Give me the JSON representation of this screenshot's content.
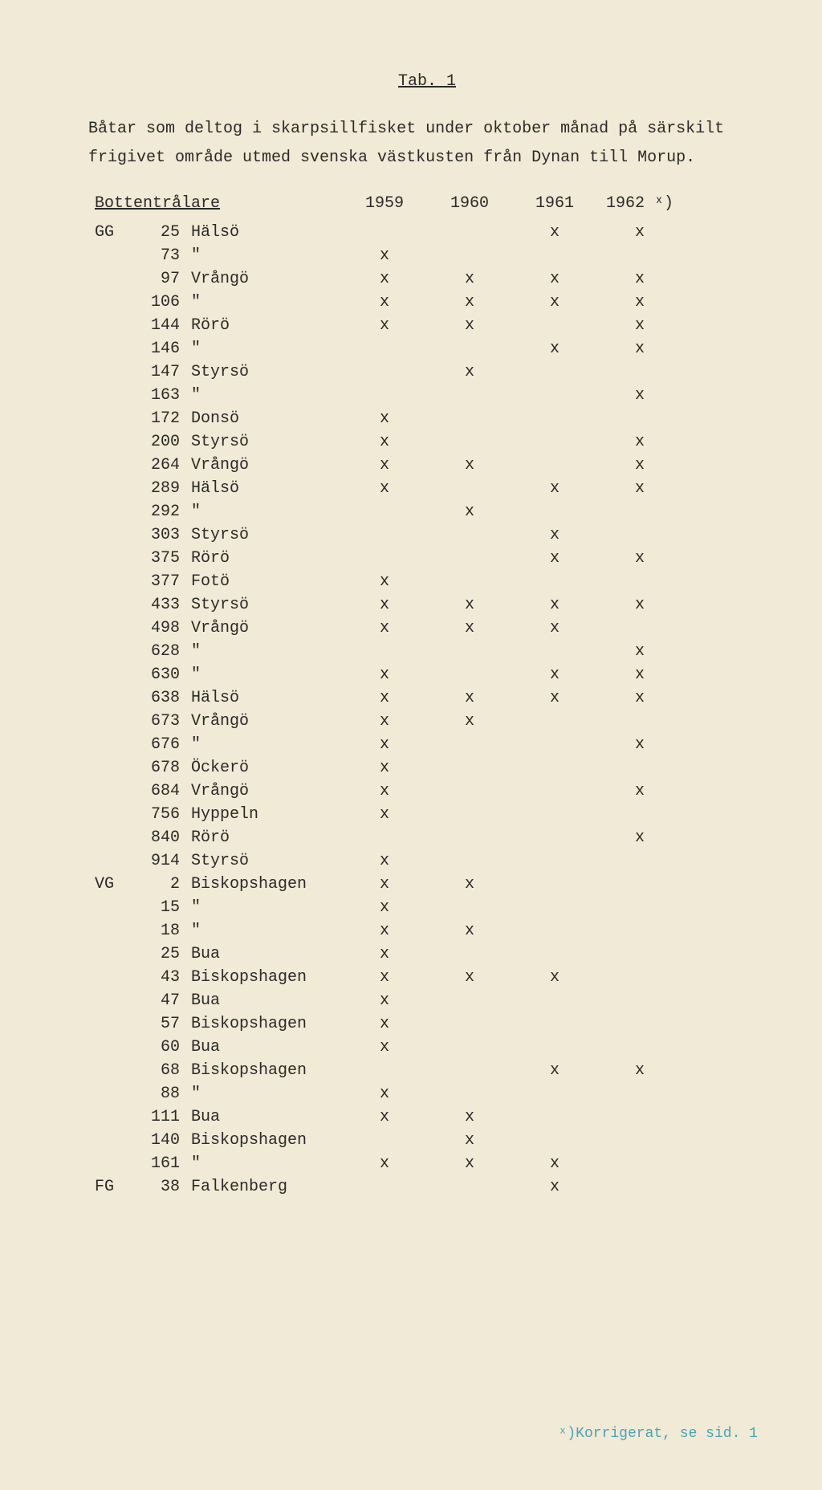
{
  "title": "Tab. 1",
  "intro": "Båtar som deltog i skarpsillfisket under oktober månad på särskilt frigivet område utmed svenska västkusten från Dynan till Morup.",
  "header": {
    "label": "Bottentrålare",
    "years": [
      "1959",
      "1960",
      "1961",
      "1962 ˣ)"
    ]
  },
  "footnote": "ˣ)Korrigerat, se sid. 1",
  "rows": [
    {
      "prefix": "GG",
      "num": "25",
      "name": "Hälsö",
      "y": [
        "",
        "",
        "x",
        "x"
      ]
    },
    {
      "prefix": "",
      "num": "73",
      "name": "\"",
      "y": [
        "x",
        "",
        "",
        ""
      ]
    },
    {
      "prefix": "",
      "num": "97",
      "name": "Vrångö",
      "y": [
        "x",
        "x",
        "x",
        "x"
      ]
    },
    {
      "prefix": "",
      "num": "106",
      "name": "\"",
      "y": [
        "x",
        "x",
        "x",
        "x"
      ]
    },
    {
      "prefix": "",
      "num": "144",
      "name": "Rörö",
      "y": [
        "x",
        "x",
        "",
        "x"
      ]
    },
    {
      "prefix": "",
      "num": "146",
      "name": "\"",
      "y": [
        "",
        "",
        "x",
        "x"
      ]
    },
    {
      "prefix": "",
      "num": "147",
      "name": "Styrsö",
      "y": [
        "",
        "x",
        "",
        ""
      ]
    },
    {
      "prefix": "",
      "num": "163",
      "name": "\"",
      "y": [
        "",
        "",
        "",
        "x"
      ]
    },
    {
      "prefix": "",
      "num": "172",
      "name": "Donsö",
      "y": [
        "x",
        "",
        "",
        ""
      ]
    },
    {
      "prefix": "",
      "num": "200",
      "name": "Styrsö",
      "y": [
        "x",
        "",
        "",
        "x"
      ]
    },
    {
      "prefix": "",
      "num": "264",
      "name": "Vrångö",
      "y": [
        "x",
        "x",
        "",
        "x"
      ]
    },
    {
      "prefix": "",
      "num": "289",
      "name": "Hälsö",
      "y": [
        "x",
        "",
        "x",
        "x"
      ]
    },
    {
      "prefix": "",
      "num": "292",
      "name": "\"",
      "y": [
        "",
        "x",
        "",
        ""
      ]
    },
    {
      "prefix": "",
      "num": "303",
      "name": "Styrsö",
      "y": [
        "",
        "",
        "x",
        ""
      ]
    },
    {
      "prefix": "",
      "num": "375",
      "name": "Rörö",
      "y": [
        "",
        "",
        "x",
        "x"
      ]
    },
    {
      "prefix": "",
      "num": "377",
      "name": "Fotö",
      "y": [
        "x",
        "",
        "",
        ""
      ]
    },
    {
      "prefix": "",
      "num": "433",
      "name": "Styrsö",
      "y": [
        "x",
        "x",
        "x",
        "x"
      ]
    },
    {
      "prefix": "",
      "num": "498",
      "name": "Vrångö",
      "y": [
        "x",
        "x",
        "x",
        ""
      ]
    },
    {
      "prefix": "",
      "num": "628",
      "name": "\"",
      "y": [
        "",
        "",
        "",
        "x"
      ]
    },
    {
      "prefix": "",
      "num": "630",
      "name": "\"",
      "y": [
        "x",
        "",
        "x",
        "x"
      ]
    },
    {
      "prefix": "",
      "num": "638",
      "name": "Hälsö",
      "y": [
        "x",
        "x",
        "x",
        "x"
      ]
    },
    {
      "prefix": "",
      "num": "673",
      "name": "Vrångö",
      "y": [
        "x",
        "x",
        "",
        ""
      ]
    },
    {
      "prefix": "",
      "num": "676",
      "name": "\"",
      "y": [
        "x",
        "",
        "",
        "x"
      ]
    },
    {
      "prefix": "",
      "num": "678",
      "name": "Öckerö",
      "y": [
        "x",
        "",
        "",
        ""
      ]
    },
    {
      "prefix": "",
      "num": "684",
      "name": "Vrångö",
      "y": [
        "x",
        "",
        "",
        "x"
      ]
    },
    {
      "prefix": "",
      "num": "756",
      "name": "Hyppeln",
      "y": [
        "x",
        "",
        "",
        ""
      ]
    },
    {
      "prefix": "",
      "num": "840",
      "name": "Rörö",
      "y": [
        "",
        "",
        "",
        "x"
      ]
    },
    {
      "prefix": "",
      "num": "914",
      "name": "Styrsö",
      "y": [
        "x",
        "",
        "",
        ""
      ]
    },
    {
      "prefix": "VG",
      "num": "2",
      "name": "Biskopshagen",
      "y": [
        "x",
        "x",
        "",
        ""
      ]
    },
    {
      "prefix": "",
      "num": "15",
      "name": "\"",
      "y": [
        "x",
        "",
        "",
        ""
      ]
    },
    {
      "prefix": "",
      "num": "18",
      "name": "\"",
      "y": [
        "x",
        "x",
        "",
        ""
      ]
    },
    {
      "prefix": "",
      "num": "25",
      "name": "Bua",
      "y": [
        "x",
        "",
        "",
        ""
      ]
    },
    {
      "prefix": "",
      "num": "43",
      "name": "Biskopshagen",
      "y": [
        "x",
        "x",
        "x",
        ""
      ]
    },
    {
      "prefix": "",
      "num": "47",
      "name": "Bua",
      "y": [
        "x",
        "",
        "",
        ""
      ]
    },
    {
      "prefix": "",
      "num": "57",
      "name": "Biskopshagen",
      "y": [
        "x",
        "",
        "",
        ""
      ]
    },
    {
      "prefix": "",
      "num": "60",
      "name": "Bua",
      "y": [
        "x",
        "",
        "",
        ""
      ]
    },
    {
      "prefix": "",
      "num": "68",
      "name": "Biskopshagen",
      "y": [
        "",
        "",
        "x",
        "x"
      ]
    },
    {
      "prefix": "",
      "num": "88",
      "name": "\"",
      "y": [
        "x",
        "",
        "",
        ""
      ]
    },
    {
      "prefix": "",
      "num": "111",
      "name": "Bua",
      "y": [
        "x",
        "x",
        "",
        ""
      ]
    },
    {
      "prefix": "",
      "num": "140",
      "name": "Biskopshagen",
      "y": [
        "",
        "x",
        "",
        ""
      ]
    },
    {
      "prefix": "",
      "num": "161",
      "name": "\"",
      "y": [
        "x",
        "x",
        "x",
        ""
      ]
    },
    {
      "prefix": "FG",
      "num": "38",
      "name": "Falkenberg",
      "y": [
        "",
        "",
        "x",
        ""
      ]
    }
  ]
}
